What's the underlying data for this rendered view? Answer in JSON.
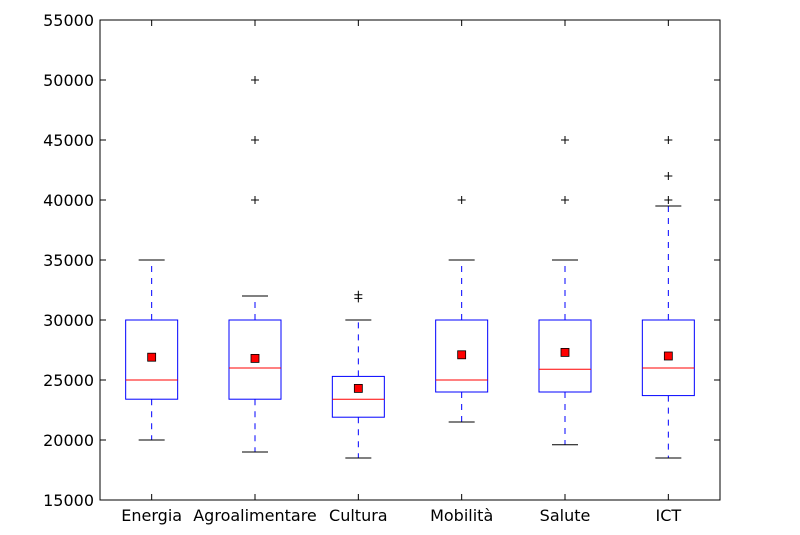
{
  "chart_data": {
    "type": "boxplot",
    "title": "",
    "xlabel": "",
    "ylabel": "",
    "ylim": [
      15000,
      55000
    ],
    "yticks": [
      15000,
      20000,
      25000,
      30000,
      35000,
      40000,
      45000,
      50000,
      55000
    ],
    "grid": false,
    "colors": {
      "box": "#0000ff",
      "median": "#ff0000",
      "mean": "#ff0000",
      "whisker": "#0000ff",
      "cap": "#000000",
      "flier": "#000000"
    },
    "categories": [
      "Energia",
      "Agroalimentare",
      "Cultura",
      "Mobilità",
      "Salute",
      "ICT"
    ],
    "boxes": [
      {
        "category": "Energia",
        "whisker_low": 20000,
        "q1": 23400,
        "median": 25000,
        "q3": 30000,
        "whisker_high": 35000,
        "mean": 26900,
        "fliers": []
      },
      {
        "category": "Agroalimentare",
        "whisker_low": 19000,
        "q1": 23400,
        "median": 26000,
        "q3": 30000,
        "whisker_high": 32000,
        "mean": 26800,
        "fliers": [
          40000,
          45000,
          50000
        ]
      },
      {
        "category": "Cultura",
        "whisker_low": 18500,
        "q1": 21900,
        "median": 23400,
        "q3": 25300,
        "whisker_high": 30000,
        "mean": 24300,
        "fliers": [
          31800,
          32100
        ]
      },
      {
        "category": "Mobilità",
        "whisker_low": 21500,
        "q1": 24000,
        "median": 25000,
        "q3": 30000,
        "whisker_high": 35000,
        "mean": 27100,
        "fliers": [
          40000
        ]
      },
      {
        "category": "Salute",
        "whisker_low": 19600,
        "q1": 24000,
        "median": 25900,
        "q3": 30000,
        "whisker_high": 35000,
        "mean": 27300,
        "fliers": [
          40000,
          45000
        ]
      },
      {
        "category": "ICT",
        "whisker_low": 18500,
        "q1": 23700,
        "median": 26000,
        "q3": 30000,
        "whisker_high": 39500,
        "mean": 27000,
        "fliers": [
          40000,
          42000,
          45000
        ]
      }
    ]
  }
}
